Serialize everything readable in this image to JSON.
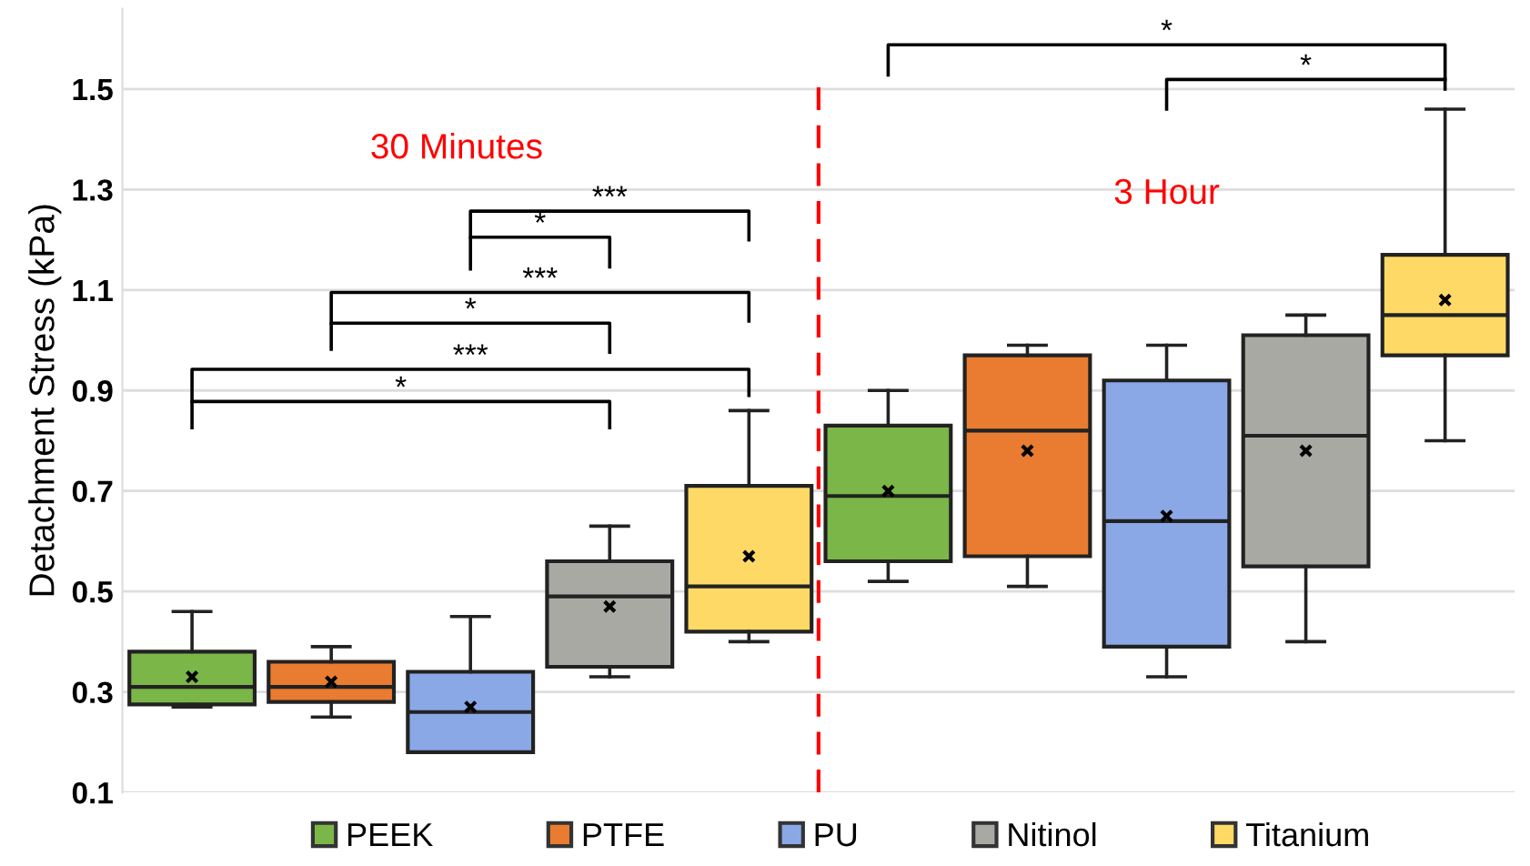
{
  "chart_data": {
    "type": "box",
    "ylabel": "Detachment Stress (kPa)",
    "categories": [
      null,
      null,
      null,
      null,
      null,
      null,
      null,
      null,
      null,
      null
    ],
    "ylim": [
      0.1,
      1.66
    ],
    "yticks": [
      0.1,
      0.3,
      0.5,
      0.7,
      0.9,
      1.1,
      1.3,
      1.5
    ],
    "grid": "y",
    "legend": "bottom",
    "tick_labels": "y",
    "annotations": [
      "30 Minutes",
      "3 Hour",
      "*",
      "***",
      "*",
      "***",
      "*",
      "***",
      "*",
      "*"
    ],
    "series": [
      {
        "name": "PEEK",
        "color": "#7ab648",
        "boxes": [
          {
            "low": 0.27,
            "q1": 0.275,
            "median": 0.31,
            "q3": 0.38,
            "high": 0.46,
            "mean": 0.33
          },
          null,
          null,
          null,
          null,
          {
            "low": 0.52,
            "q1": 0.56,
            "median": 0.69,
            "q3": 0.83,
            "high": 0.9,
            "mean": 0.7
          },
          null,
          null,
          null,
          null
        ]
      },
      {
        "name": "PTFE",
        "color": "#e97c30",
        "boxes": [
          null,
          {
            "low": 0.25,
            "q1": 0.28,
            "median": 0.31,
            "q3": 0.36,
            "high": 0.39,
            "mean": 0.32
          },
          null,
          null,
          null,
          null,
          {
            "low": 0.51,
            "q1": 0.57,
            "median": 0.82,
            "q3": 0.97,
            "high": 0.99,
            "mean": 0.78
          },
          null,
          null,
          null
        ]
      },
      {
        "name": "PU",
        "color": "#8aa8e6",
        "boxes": [
          null,
          null,
          {
            "low": 0.18,
            "q1": 0.18,
            "median": 0.26,
            "q3": 0.34,
            "high": 0.45,
            "mean": 0.27
          },
          null,
          null,
          null,
          null,
          {
            "low": 0.33,
            "q1": 0.39,
            "median": 0.64,
            "q3": 0.92,
            "high": 0.99,
            "mean": 0.65
          },
          null,
          null
        ]
      },
      {
        "name": "Nitinol",
        "color": "#a9a9a4",
        "boxes": [
          null,
          null,
          null,
          {
            "low": 0.33,
            "q1": 0.35,
            "median": 0.49,
            "q3": 0.56,
            "high": 0.63,
            "mean": 0.47
          },
          null,
          null,
          null,
          null,
          {
            "low": 0.4,
            "q1": 0.55,
            "median": 0.81,
            "q3": 1.01,
            "high": 1.05,
            "mean": 0.78
          },
          null
        ]
      },
      {
        "name": "Titanium",
        "color": "#ffd966",
        "boxes": [
          null,
          null,
          null,
          null,
          {
            "low": 0.4,
            "q1": 0.42,
            "median": 0.51,
            "q3": 0.71,
            "high": 0.86,
            "mean": 0.57
          },
          null,
          null,
          null,
          null,
          {
            "low": 0.8,
            "q1": 0.97,
            "median": 1.05,
            "q3": 1.17,
            "high": 1.46,
            "mean": 1.08
          }
        ]
      }
    ]
  }
}
